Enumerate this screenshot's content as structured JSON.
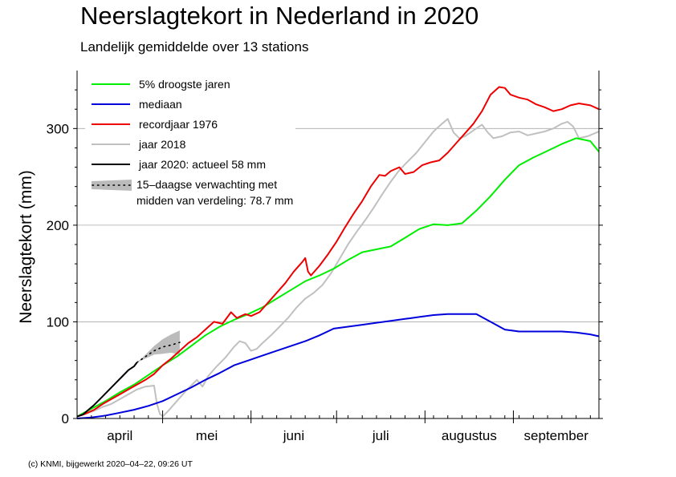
{
  "chart_data": {
    "type": "line",
    "title": "Neerslagtekort in Nederland in 2020",
    "subtitle": "Landelijk gemiddelde over 13 stations",
    "ylabel": "Neerslagtekort (mm)",
    "xlabel": "",
    "x_unit": "day-of-season (1 April = 0)",
    "xlim": [
      0,
      183
    ],
    "ylim": [
      0,
      360
    ],
    "yticks": [
      0,
      100,
      200,
      300
    ],
    "month_labels": [
      "april",
      "mei",
      "juni",
      "juli",
      "augustus",
      "september"
    ],
    "month_boundaries": [
      30,
      61,
      91,
      122,
      153
    ],
    "grid": "horizontal",
    "legend_position": "top-left",
    "colors": {
      "droog5": "#00ee00",
      "median": "#0000dd",
      "record1976": "#ee0000",
      "y2018": "#c0c0c0",
      "y2020": "#000000",
      "forecast": "#bbbbbb"
    },
    "series": [
      {
        "name": "5% droogste jaren",
        "key": "droog5",
        "points": [
          [
            0,
            2
          ],
          [
            5,
            10
          ],
          [
            10,
            18
          ],
          [
            15,
            27
          ],
          [
            20,
            35
          ],
          [
            25,
            45
          ],
          [
            30,
            55
          ],
          [
            35,
            64
          ],
          [
            40,
            75
          ],
          [
            45,
            86
          ],
          [
            50,
            95
          ],
          [
            55,
            102
          ],
          [
            60,
            108
          ],
          [
            65,
            115
          ],
          [
            70,
            124
          ],
          [
            75,
            133
          ],
          [
            80,
            142
          ],
          [
            85,
            148
          ],
          [
            90,
            155
          ],
          [
            95,
            164
          ],
          [
            100,
            172
          ],
          [
            105,
            175
          ],
          [
            110,
            178
          ],
          [
            115,
            187
          ],
          [
            120,
            196
          ],
          [
            125,
            201
          ],
          [
            130,
            200
          ],
          [
            135,
            202
          ],
          [
            140,
            215
          ],
          [
            145,
            230
          ],
          [
            150,
            247
          ],
          [
            155,
            262
          ],
          [
            160,
            270
          ],
          [
            165,
            277
          ],
          [
            170,
            284
          ],
          [
            175,
            290
          ],
          [
            180,
            287
          ],
          [
            183,
            276
          ]
        ]
      },
      {
        "name": "mediaan",
        "key": "median",
        "points": [
          [
            0,
            0
          ],
          [
            5,
            1
          ],
          [
            10,
            3
          ],
          [
            15,
            6
          ],
          [
            20,
            9
          ],
          [
            25,
            13
          ],
          [
            30,
            18
          ],
          [
            35,
            25
          ],
          [
            40,
            32
          ],
          [
            45,
            40
          ],
          [
            50,
            47
          ],
          [
            55,
            55
          ],
          [
            60,
            60
          ],
          [
            65,
            65
          ],
          [
            70,
            70
          ],
          [
            75,
            75
          ],
          [
            80,
            80
          ],
          [
            85,
            86
          ],
          [
            90,
            93
          ],
          [
            95,
            95
          ],
          [
            100,
            97
          ],
          [
            105,
            99
          ],
          [
            110,
            101
          ],
          [
            115,
            103
          ],
          [
            120,
            105
          ],
          [
            125,
            107
          ],
          [
            130,
            108
          ],
          [
            135,
            108
          ],
          [
            140,
            108
          ],
          [
            145,
            100
          ],
          [
            150,
            92
          ],
          [
            155,
            90
          ],
          [
            160,
            90
          ],
          [
            165,
            90
          ],
          [
            170,
            90
          ],
          [
            175,
            89
          ],
          [
            180,
            87
          ],
          [
            183,
            85
          ]
        ]
      },
      {
        "name": "recordjaar 1976",
        "key": "record1976",
        "points": [
          [
            0,
            2
          ],
          [
            3,
            5
          ],
          [
            6,
            9
          ],
          [
            9,
            15
          ],
          [
            12,
            20
          ],
          [
            15,
            25
          ],
          [
            18,
            30
          ],
          [
            21,
            35
          ],
          [
            24,
            40
          ],
          [
            27,
            46
          ],
          [
            30,
            55
          ],
          [
            33,
            62
          ],
          [
            36,
            70
          ],
          [
            39,
            78
          ],
          [
            42,
            84
          ],
          [
            45,
            92
          ],
          [
            48,
            100
          ],
          [
            51,
            98
          ],
          [
            54,
            110
          ],
          [
            56,
            104
          ],
          [
            59,
            108
          ],
          [
            61,
            106
          ],
          [
            64,
            110
          ],
          [
            67,
            120
          ],
          [
            70,
            130
          ],
          [
            73,
            140
          ],
          [
            76,
            152
          ],
          [
            79,
            162
          ],
          [
            80,
            166
          ],
          [
            81,
            152
          ],
          [
            82,
            148
          ],
          [
            85,
            158
          ],
          [
            88,
            170
          ],
          [
            91,
            183
          ],
          [
            94,
            198
          ],
          [
            97,
            212
          ],
          [
            100,
            225
          ],
          [
            103,
            240
          ],
          [
            106,
            252
          ],
          [
            108,
            251
          ],
          [
            110,
            256
          ],
          [
            113,
            260
          ],
          [
            115,
            253
          ],
          [
            118,
            255
          ],
          [
            121,
            262
          ],
          [
            124,
            265
          ],
          [
            127,
            267
          ],
          [
            130,
            275
          ],
          [
            133,
            285
          ],
          [
            136,
            295
          ],
          [
            139,
            305
          ],
          [
            142,
            318
          ],
          [
            145,
            335
          ],
          [
            148,
            343
          ],
          [
            150,
            342
          ],
          [
            152,
            335
          ],
          [
            155,
            332
          ],
          [
            158,
            330
          ],
          [
            161,
            325
          ],
          [
            164,
            322
          ],
          [
            167,
            318
          ],
          [
            170,
            320
          ],
          [
            173,
            324
          ],
          [
            176,
            326
          ],
          [
            180,
            324
          ],
          [
            183,
            320
          ]
        ]
      },
      {
        "name": "jaar 2018",
        "key": "y2018",
        "points": [
          [
            0,
            2
          ],
          [
            3,
            5
          ],
          [
            6,
            8
          ],
          [
            9,
            12
          ],
          [
            12,
            15
          ],
          [
            15,
            20
          ],
          [
            18,
            25
          ],
          [
            21,
            30
          ],
          [
            24,
            33
          ],
          [
            27,
            34
          ],
          [
            28,
            15
          ],
          [
            29,
            5
          ],
          [
            30,
            2
          ],
          [
            32,
            8
          ],
          [
            35,
            18
          ],
          [
            38,
            28
          ],
          [
            40,
            34
          ],
          [
            42,
            40
          ],
          [
            44,
            33
          ],
          [
            46,
            44
          ],
          [
            49,
            54
          ],
          [
            52,
            63
          ],
          [
            55,
            74
          ],
          [
            57,
            80
          ],
          [
            59,
            78
          ],
          [
            61,
            70
          ],
          [
            63,
            72
          ],
          [
            65,
            78
          ],
          [
            68,
            86
          ],
          [
            71,
            95
          ],
          [
            74,
            104
          ],
          [
            77,
            115
          ],
          [
            80,
            124
          ],
          [
            83,
            130
          ],
          [
            86,
            138
          ],
          [
            89,
            150
          ],
          [
            92,
            165
          ],
          [
            95,
            180
          ],
          [
            98,
            193
          ],
          [
            101,
            205
          ],
          [
            104,
            218
          ],
          [
            107,
            232
          ],
          [
            110,
            245
          ],
          [
            113,
            257
          ],
          [
            116,
            266
          ],
          [
            119,
            275
          ],
          [
            122,
            286
          ],
          [
            125,
            297
          ],
          [
            128,
            305
          ],
          [
            130,
            310
          ],
          [
            132,
            296
          ],
          [
            134,
            290
          ],
          [
            136,
            292
          ],
          [
            139,
            298
          ],
          [
            142,
            304
          ],
          [
            144,
            296
          ],
          [
            146,
            290
          ],
          [
            149,
            292
          ],
          [
            152,
            296
          ],
          [
            155,
            297
          ],
          [
            158,
            293
          ],
          [
            161,
            295
          ],
          [
            164,
            297
          ],
          [
            167,
            300
          ],
          [
            170,
            305
          ],
          [
            172,
            307
          ],
          [
            174,
            302
          ],
          [
            176,
            290
          ],
          [
            179,
            292
          ],
          [
            183,
            297
          ]
        ]
      },
      {
        "name": "jaar 2020: actueel 58 mm",
        "key": "y2020",
        "points": [
          [
            0,
            2
          ],
          [
            2,
            4
          ],
          [
            4,
            9
          ],
          [
            6,
            14
          ],
          [
            8,
            20
          ],
          [
            10,
            26
          ],
          [
            12,
            32
          ],
          [
            14,
            38
          ],
          [
            16,
            44
          ],
          [
            18,
            50
          ],
          [
            20,
            54
          ],
          [
            21,
            58
          ]
        ]
      }
    ],
    "forecast": {
      "name": "15-daagse verwachting met midden van verdeling: 78.7 mm",
      "label_line1": "15–daagse verwachting met",
      "label_line2": "midden van verdeling: 78.7 mm",
      "median_points": [
        [
          21,
          58
        ],
        [
          24,
          64
        ],
        [
          27,
          70
        ],
        [
          30,
          74
        ],
        [
          33,
          76
        ],
        [
          36,
          78.7
        ]
      ],
      "band_lower": [
        [
          21,
          58
        ],
        [
          24,
          62
        ],
        [
          27,
          66
        ],
        [
          30,
          67
        ],
        [
          33,
          68
        ],
        [
          36,
          66
        ]
      ],
      "band_upper": [
        [
          21,
          58
        ],
        [
          24,
          66
        ],
        [
          27,
          75
        ],
        [
          30,
          82
        ],
        [
          33,
          87
        ],
        [
          36,
          91
        ]
      ]
    }
  },
  "credit": "(c) KNMI, bijgewerkt 2020–04–22, 09:26 UT"
}
